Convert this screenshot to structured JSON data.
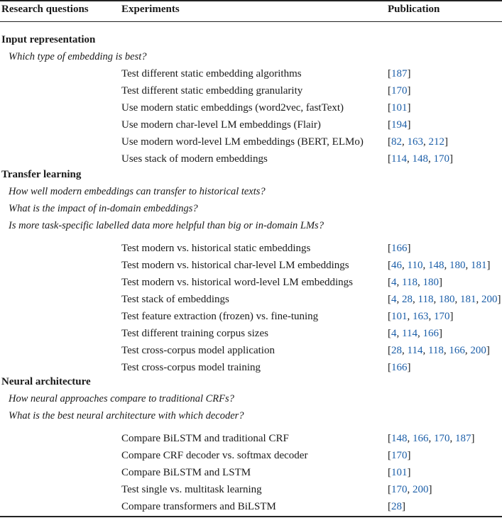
{
  "headers": {
    "questions": "Research questions",
    "experiments": "Experiments",
    "publication": "Publication"
  },
  "sections": [
    {
      "title": "Input representation",
      "questions": [
        "Which type of embedding is best?"
      ],
      "rows": [
        {
          "experiment": "Test different static embedding algorithms",
          "refs": [
            "187"
          ]
        },
        {
          "experiment": "Test different static embedding granularity",
          "refs": [
            "170"
          ]
        },
        {
          "experiment": "Use modern static embeddings (word2vec, fastText)",
          "refs": [
            "101"
          ]
        },
        {
          "experiment": "Use modern char-level LM embeddings (Flair)",
          "refs": [
            "194"
          ]
        },
        {
          "experiment": "Use modern word-level LM embeddings (BERT, ELMo)",
          "refs": [
            "82",
            "163",
            "212"
          ]
        },
        {
          "experiment": "Uses stack of modern embeddings",
          "refs": [
            "114",
            "148",
            "170"
          ]
        }
      ]
    },
    {
      "title": "Transfer learning",
      "questions": [
        "How well modern embeddings can transfer to historical texts?",
        "What is the impact of in-domain embeddings?",
        "Is more task-specific labelled data more helpful than big or in-domain LMs?"
      ],
      "rows": [
        {
          "experiment": "Test modern vs. historical static embeddings",
          "refs": [
            "166"
          ]
        },
        {
          "experiment": "Test modern vs. historical char-level LM embeddings",
          "refs": [
            "46",
            "110",
            "148",
            "180",
            "181"
          ]
        },
        {
          "experiment": "Test modern vs. historical word-level LM embeddings",
          "refs": [
            "4",
            "118",
            "180"
          ]
        },
        {
          "experiment": "Test stack of embeddings",
          "refs": [
            "4",
            "28",
            "118",
            "180",
            "181",
            "200"
          ]
        },
        {
          "experiment": "Test feature extraction (frozen) vs. fine-tuning",
          "refs": [
            "101",
            "163",
            "170"
          ]
        },
        {
          "experiment": "Test different training corpus sizes",
          "refs": [
            "4",
            "114",
            "166"
          ]
        },
        {
          "experiment": "Test cross-corpus model application",
          "refs": [
            "28",
            "114",
            "118",
            "166",
            "200"
          ]
        },
        {
          "experiment": "Test cross-corpus model training",
          "refs": [
            "166"
          ]
        }
      ]
    },
    {
      "title": "Neural architecture",
      "questions": [
        "How neural approaches compare to traditional CRFs?",
        "What is the best neural architecture with which decoder?"
      ],
      "rows": [
        {
          "experiment": "Compare BiLSTM and traditional CRF",
          "refs": [
            "148",
            "166",
            "170",
            "187"
          ]
        },
        {
          "experiment": "Compare CRF decoder vs. softmax decoder",
          "refs": [
            "170"
          ]
        },
        {
          "experiment": "Compare BiLSTM and LSTM",
          "refs": [
            "101"
          ]
        },
        {
          "experiment": "Test single vs. multitask learning",
          "refs": [
            "170",
            "200"
          ]
        },
        {
          "experiment": "Compare transformers and BiLSTM",
          "refs": [
            "28"
          ]
        }
      ]
    }
  ],
  "colors": {
    "reference": "#1b5ea8",
    "text": "#1a1a1a"
  }
}
